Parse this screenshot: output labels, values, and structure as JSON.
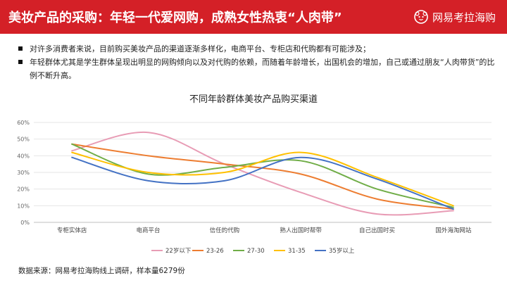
{
  "header": {
    "title": "美妆产品的采购：年轻一代爱网购，成熟女性热衷“人肉带”",
    "brand": "网易考拉海购"
  },
  "bullets": [
    "对许多消费者来说，目前购买美妆产品的渠道逐渐多样化，电商平台、专柜店和代购都有可能涉及；",
    "年轻群体尤其是学生群体呈现出明显的网购倾向以及对代购的依赖，而随着年龄增长，出国机会的增加，自己或通过朋友“人肉带货”的比例不断升高。"
  ],
  "chart_data": {
    "type": "line",
    "title": "不同年龄群体美妆产品购买渠道",
    "categories": [
      "专柜实体店",
      "电商平台",
      "信任的代购",
      "熟人出国时帮带",
      "自己出国时买",
      "国外海淘网站"
    ],
    "ylim": [
      0,
      60
    ],
    "yticks": [
      "0%",
      "10%",
      "20%",
      "30%",
      "40%",
      "50%",
      "60%"
    ],
    "legend_position": "bottom",
    "series": [
      {
        "name": "22岁以下",
        "color": "#e89cb5",
        "values": [
          43,
          54,
          35,
          18,
          5,
          7
        ]
      },
      {
        "name": "23-26",
        "color": "#ed7d31",
        "values": [
          47,
          40,
          35,
          29,
          14,
          8
        ]
      },
      {
        "name": "27-30",
        "color": "#70ad47",
        "values": [
          47,
          29,
          33,
          37,
          20,
          9
        ]
      },
      {
        "name": "31-35",
        "color": "#ffc000",
        "values": [
          42,
          30,
          30,
          42,
          27,
          10
        ]
      },
      {
        "name": "35岁以上",
        "color": "#4472c4",
        "values": [
          39,
          25,
          25,
          39,
          26,
          8
        ]
      }
    ]
  },
  "footer": {
    "source": "数据来源：网易考拉海购线上调研，样本量6279份"
  }
}
